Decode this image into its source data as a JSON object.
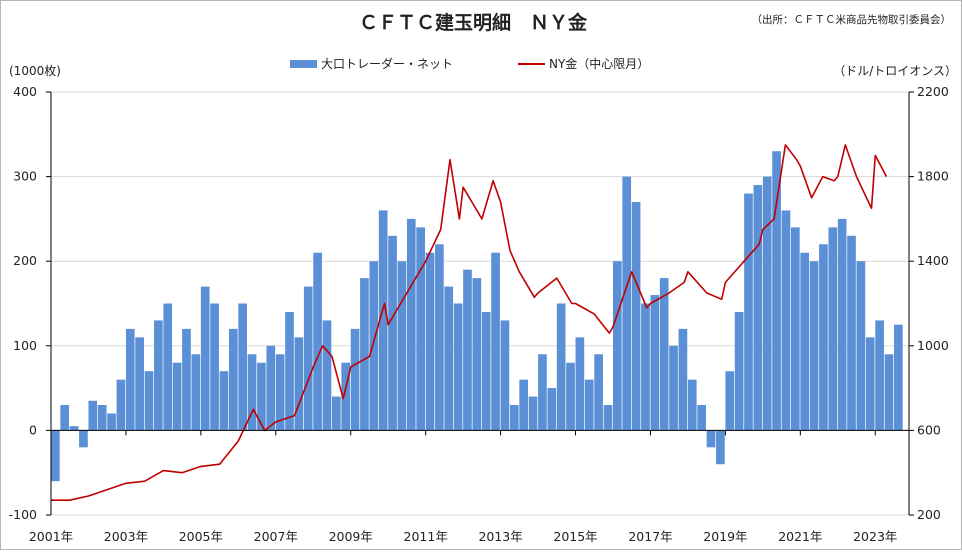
{
  "chart_data": {
    "type": "bar+line",
    "title": "ＣＦＴＣ建玉明細　ＮＹ金",
    "source": "（出所：ＣＦＴＣ米商品先物取引委員会）",
    "left_unit": "(1000枚)",
    "right_unit": "（ドル/トロイオンス）",
    "left_axis": {
      "min": -100,
      "max": 400,
      "ticks": [
        -100,
        0,
        100,
        200,
        300,
        400
      ]
    },
    "right_axis": {
      "min": 200,
      "max": 2200,
      "ticks": [
        200,
        600,
        1000,
        1400,
        1800,
        2200
      ]
    },
    "x_range": [
      2001.0,
      2023.9
    ],
    "x_ticks": [
      {
        "year": 2001,
        "label": "2001年"
      },
      {
        "year": 2003,
        "label": "2003年"
      },
      {
        "year": 2005,
        "label": "2005年"
      },
      {
        "year": 2007,
        "label": "2007年"
      },
      {
        "year": 2009,
        "label": "2009年"
      },
      {
        "year": 2011,
        "label": "2011年"
      },
      {
        "year": 2013,
        "label": "2013年"
      },
      {
        "year": 2015,
        "label": "2015年"
      },
      {
        "year": 2017,
        "label": "2017年"
      },
      {
        "year": 2019,
        "label": "2019年"
      },
      {
        "year": 2021,
        "label": "2021年"
      },
      {
        "year": 2023,
        "label": "2023年"
      }
    ],
    "legend": {
      "bar": "大口トレーダー・ネット",
      "line": "NY金（中心限月）"
    },
    "colors": {
      "bar": "#5b8fd6",
      "line": "#c00000"
    },
    "bar_series": {
      "name": "大口トレーダー・ネット",
      "x": [
        2001.0,
        2001.25,
        2001.5,
        2001.75,
        2002.0,
        2002.25,
        2002.5,
        2002.75,
        2003.0,
        2003.25,
        2003.5,
        2003.75,
        2004.0,
        2004.25,
        2004.5,
        2004.75,
        2005.0,
        2005.25,
        2005.5,
        2005.75,
        2006.0,
        2006.25,
        2006.5,
        2006.75,
        2007.0,
        2007.25,
        2007.5,
        2007.75,
        2008.0,
        2008.25,
        2008.5,
        2008.75,
        2009.0,
        2009.25,
        2009.5,
        2009.75,
        2010.0,
        2010.25,
        2010.5,
        2010.75,
        2011.0,
        2011.25,
        2011.5,
        2011.75,
        2012.0,
        2012.25,
        2012.5,
        2012.75,
        2013.0,
        2013.25,
        2013.5,
        2013.75,
        2014.0,
        2014.25,
        2014.5,
        2014.75,
        2015.0,
        2015.25,
        2015.5,
        2015.75,
        2016.0,
        2016.25,
        2016.5,
        2016.75,
        2017.0,
        2017.25,
        2017.5,
        2017.75,
        2018.0,
        2018.25,
        2018.5,
        2018.75,
        2019.0,
        2019.25,
        2019.5,
        2019.75,
        2020.0,
        2020.25,
        2020.5,
        2020.75,
        2021.0,
        2021.25,
        2021.5,
        2021.75,
        2022.0,
        2022.25,
        2022.5,
        2022.75,
        2023.0,
        2023.25,
        2023.5
      ],
      "values": [
        -60,
        30,
        5,
        -20,
        35,
        30,
        20,
        60,
        120,
        110,
        70,
        130,
        150,
        80,
        120,
        90,
        170,
        150,
        70,
        120,
        150,
        90,
        80,
        100,
        90,
        140,
        110,
        170,
        210,
        130,
        40,
        80,
        120,
        180,
        200,
        260,
        230,
        200,
        250,
        240,
        210,
        220,
        170,
        150,
        190,
        180,
        140,
        210,
        130,
        30,
        60,
        40,
        90,
        50,
        150,
        80,
        110,
        60,
        90,
        30,
        200,
        300,
        270,
        150,
        160,
        180,
        100,
        120,
        60,
        30,
        -20,
        -40,
        70,
        140,
        280,
        290,
        300,
        330,
        260,
        240,
        210,
        200,
        220,
        240,
        250,
        230,
        200,
        110,
        130,
        90,
        125
      ]
    },
    "line_series": {
      "name": "NY金（中心限月）",
      "x": [
        2001.0,
        2001.5,
        2002.0,
        2002.5,
        2003.0,
        2003.5,
        2004.0,
        2004.5,
        2005.0,
        2005.5,
        2006.0,
        2006.4,
        2006.7,
        2007.0,
        2007.5,
        2008.0,
        2008.25,
        2008.5,
        2008.8,
        2009.0,
        2009.5,
        2009.9,
        2010.0,
        2010.5,
        2011.0,
        2011.4,
        2011.65,
        2011.9,
        2012.0,
        2012.5,
        2012.8,
        2013.0,
        2013.25,
        2013.5,
        2013.9,
        2014.0,
        2014.5,
        2014.9,
        2015.0,
        2015.5,
        2015.9,
        2016.0,
        2016.5,
        2016.9,
        2017.0,
        2017.5,
        2017.9,
        2018.0,
        2018.5,
        2018.9,
        2019.0,
        2019.5,
        2019.9,
        2020.0,
        2020.3,
        2020.6,
        2020.9,
        2021.0,
        2021.3,
        2021.6,
        2021.9,
        2022.0,
        2022.2,
        2022.5,
        2022.9,
        2023.0,
        2023.3
      ],
      "values": [
        270,
        270,
        290,
        320,
        350,
        360,
        410,
        400,
        430,
        440,
        550,
        700,
        600,
        640,
        670,
        900,
        1000,
        950,
        750,
        900,
        950,
        1200,
        1100,
        1250,
        1400,
        1550,
        1880,
        1600,
        1750,
        1600,
        1780,
        1680,
        1450,
        1350,
        1230,
        1250,
        1320,
        1200,
        1200,
        1150,
        1060,
        1090,
        1350,
        1180,
        1200,
        1250,
        1300,
        1350,
        1250,
        1220,
        1300,
        1400,
        1480,
        1550,
        1600,
        1950,
        1880,
        1850,
        1700,
        1800,
        1780,
        1800,
        1950,
        1800,
        1650,
        1900,
        1800
      ]
    }
  }
}
